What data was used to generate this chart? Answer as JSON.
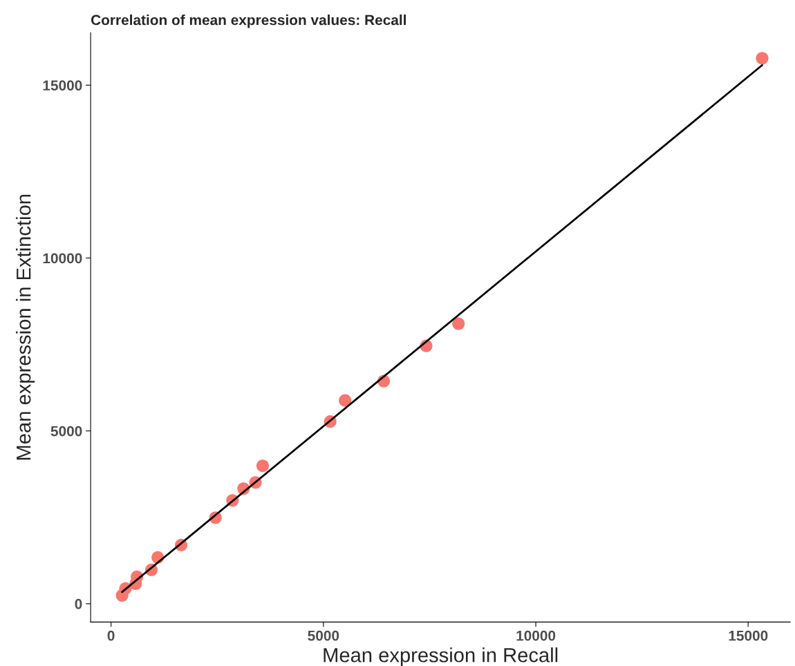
{
  "chart_data": {
    "type": "scatter",
    "title": "Correlation of mean expression values: Recall",
    "xlabel": "Mean expression in Recall",
    "ylabel": "Mean expression in Extinction",
    "series": [
      {
        "color": "#f8766d",
        "marker": "circle",
        "x": [
          260,
          340,
          580,
          610,
          950,
          1100,
          1650,
          2460,
          2860,
          3120,
          3400,
          3570,
          5160,
          5510,
          6420,
          7420,
          8180,
          15330
        ],
        "values": [
          240,
          440,
          580,
          780,
          980,
          1340,
          1700,
          2490,
          2990,
          3330,
          3510,
          3990,
          5270,
          5880,
          6440,
          7460,
          8100,
          15780
        ]
      },
      {
        "type": "line",
        "color": "#000000",
        "line_style": "solid",
        "x": [
          260,
          15330
        ],
        "values": [
          340,
          15580
        ]
      }
    ],
    "xlim": [
      -480,
      15990
    ],
    "ylim": [
      -530,
      16520
    ],
    "xticks": [
      0,
      5000,
      10000,
      15000
    ],
    "yticks": [
      0,
      5000,
      10000,
      15000
    ]
  }
}
